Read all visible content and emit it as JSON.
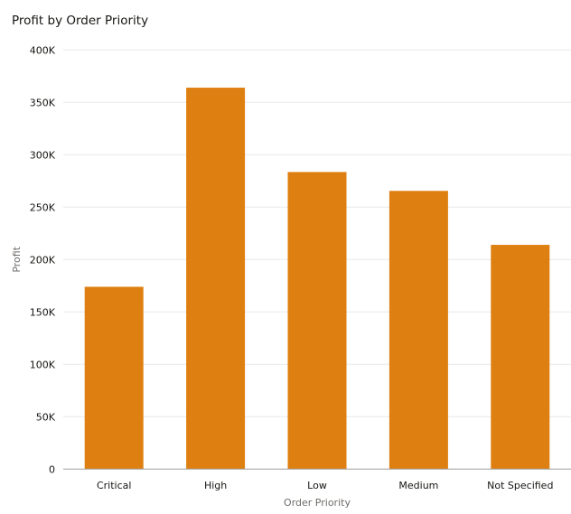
{
  "chart_data": {
    "type": "bar",
    "title": "Profit by Order Priority",
    "xlabel": "Order Priority",
    "ylabel": "Profit",
    "categories": [
      "Critical",
      "High",
      "Low",
      "Medium",
      "Not Specified"
    ],
    "values": [
      174000,
      364000,
      283500,
      265500,
      214000
    ],
    "ylim": [
      0,
      400000
    ],
    "yticks": [
      0,
      50000,
      100000,
      150000,
      200000,
      250000,
      300000,
      350000,
      400000
    ],
    "ytick_labels": [
      "0",
      "50K",
      "100K",
      "150K",
      "200K",
      "250K",
      "300K",
      "350K",
      "400K"
    ],
    "grid": true,
    "legend": "none",
    "colors": {
      "bar": "#DE7F11",
      "grid": "#E8E8E8",
      "axis": "#9E9E9E"
    }
  }
}
